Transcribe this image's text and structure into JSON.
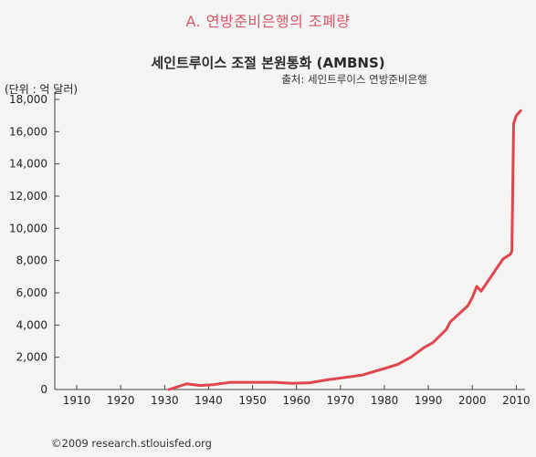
{
  "section_title": "A. 연방준비은행의 조폐량",
  "footer": {
    "copyright": "©2009 research.stlouisfed.org"
  },
  "colors": {
    "line": "#df4650",
    "axis": "#444444",
    "section_title": "#d8556a"
  },
  "chart_data": {
    "type": "line",
    "title": "세인트루이스 조절 본원통화 (AMBNS)",
    "subtitle": "출처: 세인트루이스 연방준비은행",
    "ylabel": "(단위 : 억 달러)",
    "xlabel": "",
    "xlim": [
      1905,
      2012
    ],
    "ylim": [
      0,
      18000
    ],
    "grid": false,
    "x_ticks": [
      "1910",
      "1920",
      "1930",
      "1940",
      "1950",
      "1960",
      "1970",
      "1980",
      "1990",
      "2000",
      "2010"
    ],
    "y_ticks": [
      "0",
      "2,000",
      "4,000",
      "6,000",
      "8,000",
      "10,000",
      "12,000",
      "14,000",
      "16,000",
      "18,000"
    ],
    "series": [
      {
        "x": [
          1931,
          1935,
          1938,
          1941,
          1945,
          1950,
          1955,
          1959,
          1963,
          1967,
          1971,
          1975,
          1980,
          1983,
          1986,
          1989,
          1991,
          1994,
          1995,
          1997,
          1999,
          2000,
          2001,
          2002,
          2004,
          2007,
          2008.7,
          2009.0,
          2009.4,
          2010.0,
          2011.0
        ],
        "y": [
          0,
          350,
          250,
          300,
          450,
          450,
          450,
          380,
          420,
          600,
          750,
          900,
          1300,
          1550,
          2000,
          2600,
          2900,
          3700,
          4200,
          4700,
          5200,
          5700,
          6400,
          6100,
          6900,
          8100,
          8400,
          8600,
          16500,
          17000,
          17300
        ]
      }
    ]
  }
}
